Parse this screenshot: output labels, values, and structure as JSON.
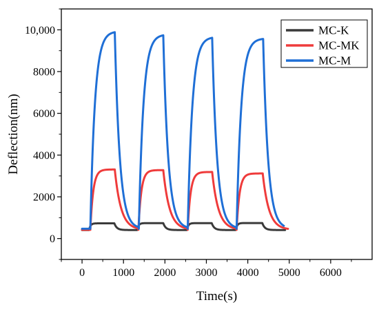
{
  "chart_data": {
    "type": "line",
    "xlabel": "Time(s)",
    "ylabel": "Deflection(nm)",
    "xlim": [
      -500,
      7000
    ],
    "ylim": [
      -1000,
      11000
    ],
    "x_ticks": [
      0,
      1000,
      2000,
      3000,
      4000,
      5000,
      6000
    ],
    "x_tick_labels": [
      "0",
      "1000",
      "2000",
      "3000",
      "4000",
      "5000",
      "6000"
    ],
    "y_ticks": [
      0,
      2000,
      4000,
      6000,
      8000,
      10000
    ],
    "y_tick_labels": [
      "0",
      "2000",
      "4000",
      "6000",
      "8000",
      "10,000"
    ],
    "grid": false,
    "legend_position": "top-right",
    "series": [
      {
        "name": "MC-K",
        "color": "#3a3a3a",
        "baseline": 410,
        "rise_start": [
          170,
          1330,
          2530,
          3710
        ],
        "fall_start": [
          780,
          1960,
          3130,
          4350
        ],
        "peaks": [
          730,
          740,
          740,
          745
        ],
        "rise_tau": 35,
        "fall_tau": 60,
        "end_x": 4900
      },
      {
        "name": "MC-MK",
        "color": "#ef3b3b",
        "baseline": 420,
        "rise_start": [
          200,
          1360,
          2550,
          3730
        ],
        "fall_start": [
          790,
          1960,
          3140,
          4360
        ],
        "peaks": [
          3310,
          3280,
          3190,
          3120
        ],
        "rise_tau": 70,
        "fall_tau": 150,
        "end_x": 4970
      },
      {
        "name": "MC-M",
        "color": "#1f6fd6",
        "baseline": 470,
        "rise_start": [
          200,
          1370,
          2550,
          3730
        ],
        "fall_start": [
          790,
          1960,
          3140,
          4370
        ],
        "peaks": [
          9930,
          9780,
          9660,
          9590
        ],
        "rise_tau": 110,
        "fall_tau": 120,
        "end_x": 4870
      }
    ]
  }
}
